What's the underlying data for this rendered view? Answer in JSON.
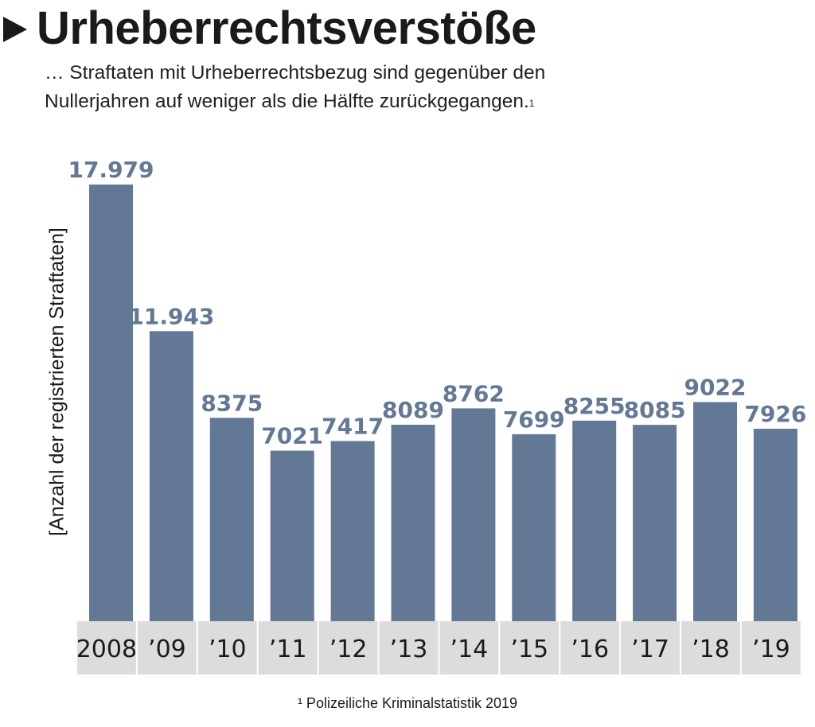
{
  "header": {
    "title": "Urheberrechtsverstöße",
    "subtitle_line1": "… Straftaten mit Urheberrechtsbezug sind gegenüber den",
    "subtitle_line2": "Nullerjahren auf weniger als die Hälfte zurückgegangen.",
    "subtitle_footnote_mark": "1"
  },
  "footnote": "¹ Polizeiliche Kriminalstatistik 2019",
  "colors": {
    "bar": "#637895",
    "label_strip": "#dddcdc",
    "text": "#1a1a1a"
  },
  "chart_data": {
    "type": "bar",
    "title": "Urheberrechtsverstöße",
    "xlabel": "",
    "ylabel": "[Anzahl der registrierten Straftaten]",
    "categories": [
      "2008",
      "’09",
      "’10",
      "’11",
      "’12",
      "’13",
      "’14",
      "’15",
      "’16",
      "’17",
      "’18",
      "’19"
    ],
    "values": [
      17979,
      11943,
      8375,
      7021,
      7417,
      8089,
      8762,
      7699,
      8255,
      8085,
      9022,
      7926
    ],
    "value_labels": [
      "17.979",
      "11.943",
      "8375",
      "7021",
      "7417",
      "8089",
      "8762",
      "7699",
      "8255",
      "8085",
      "9022",
      "7926"
    ],
    "ylim": [
      0,
      17979
    ],
    "grid": false,
    "legend": "none"
  }
}
